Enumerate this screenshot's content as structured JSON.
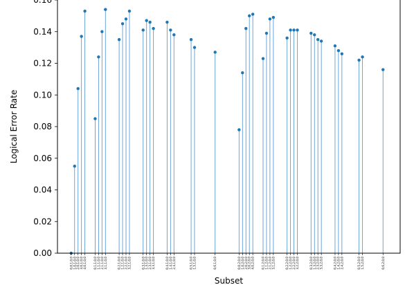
{
  "chart_data": {
    "type": "stem",
    "title": "",
    "xlabel": "Subset",
    "ylabel": "Logical Error Rate",
    "ylim": [
      0.0,
      0.16
    ],
    "yticks": [
      "0.00",
      "0.02",
      "0.04",
      "0.06",
      "0.08",
      "0.10",
      "0.12",
      "0.14",
      "0.16"
    ],
    "grid": false,
    "legend": "none",
    "colors": {
      "stem": "#5b9bd5",
      "marker": "#1f77b4",
      "axis": "#000000"
    },
    "points": [
      {
        "x": 1,
        "label": "0,0,1,0,0",
        "y": 0.0
      },
      {
        "x": 2,
        "label": "1,0,1,0,0",
        "y": 0.055
      },
      {
        "x": 3,
        "label": "2,0,1,0,0",
        "y": 0.104
      },
      {
        "x": 4,
        "label": "3,0,1,0,0",
        "y": 0.137
      },
      {
        "x": 5,
        "label": "4,0,1,0,0",
        "y": 0.153
      },
      {
        "x": 8,
        "label": "0,1,1,0,0",
        "y": 0.085
      },
      {
        "x": 9,
        "label": "1,1,1,0,0",
        "y": 0.124
      },
      {
        "x": 10,
        "label": "2,1,1,0,0",
        "y": 0.14
      },
      {
        "x": 11,
        "label": "3,1,1,0,0",
        "y": 0.154
      },
      {
        "x": 15,
        "label": "0,2,1,0,0",
        "y": 0.135
      },
      {
        "x": 16,
        "label": "1,2,1,0,0",
        "y": 0.145
      },
      {
        "x": 17,
        "label": "2,2,1,0,0",
        "y": 0.148
      },
      {
        "x": 18,
        "label": "3,2,1,0,0",
        "y": 0.153
      },
      {
        "x": 22,
        "label": "0,3,1,0,0",
        "y": 0.141
      },
      {
        "x": 23,
        "label": "1,3,1,0,0",
        "y": 0.147
      },
      {
        "x": 24,
        "label": "2,3,1,0,0",
        "y": 0.146
      },
      {
        "x": 25,
        "label": "3,3,1,0,0",
        "y": 0.142
      },
      {
        "x": 29,
        "label": "0,4,1,0,0",
        "y": 0.146
      },
      {
        "x": 30,
        "label": "1,4,1,0,0",
        "y": 0.141
      },
      {
        "x": 31,
        "label": "2,4,1,0,0",
        "y": 0.138
      },
      {
        "x": 36,
        "label": "0,5,1,0,0",
        "y": 0.135
      },
      {
        "x": 37,
        "label": "1,5,1,0,0",
        "y": 0.13
      },
      {
        "x": 43,
        "label": "0,6,1,0,0",
        "y": 0.127
      },
      {
        "x": 50,
        "label": "0,0,2,0,0",
        "y": 0.078
      },
      {
        "x": 51,
        "label": "1,0,2,0,0",
        "y": 0.114
      },
      {
        "x": 52,
        "label": "2,0,2,0,0",
        "y": 0.142
      },
      {
        "x": 53,
        "label": "3,0,2,0,0",
        "y": 0.15
      },
      {
        "x": 54,
        "label": "4,0,2,0,0",
        "y": 0.151
      },
      {
        "x": 57,
        "label": "0,1,2,0,0",
        "y": 0.123
      },
      {
        "x": 58,
        "label": "1,1,2,0,0",
        "y": 0.139
      },
      {
        "x": 59,
        "label": "2,1,2,0,0",
        "y": 0.148
      },
      {
        "x": 60,
        "label": "3,1,2,0,0",
        "y": 0.149
      },
      {
        "x": 64,
        "label": "0,2,2,0,0",
        "y": 0.136
      },
      {
        "x": 65,
        "label": "1,2,2,0,0",
        "y": 0.141
      },
      {
        "x": 66,
        "label": "2,2,2,0,0",
        "y": 0.141
      },
      {
        "x": 67,
        "label": "3,2,2,0,0",
        "y": 0.141
      },
      {
        "x": 71,
        "label": "0,3,2,0,0",
        "y": 0.139
      },
      {
        "x": 72,
        "label": "1,3,2,0,0",
        "y": 0.138
      },
      {
        "x": 73,
        "label": "2,3,2,0,0",
        "y": 0.135
      },
      {
        "x": 74,
        "label": "3,3,2,0,0",
        "y": 0.134
      },
      {
        "x": 78,
        "label": "0,4,2,0,0",
        "y": 0.131
      },
      {
        "x": 79,
        "label": "1,4,2,0,0",
        "y": 0.128
      },
      {
        "x": 80,
        "label": "2,4,2,0,0",
        "y": 0.126
      },
      {
        "x": 85,
        "label": "0,5,2,0,0",
        "y": 0.122
      },
      {
        "x": 86,
        "label": "1,5,2,0,0",
        "y": 0.124
      },
      {
        "x": 92,
        "label": "0,6,2,0,0",
        "y": 0.116
      }
    ],
    "xlim": [
      -3,
      97
    ]
  }
}
